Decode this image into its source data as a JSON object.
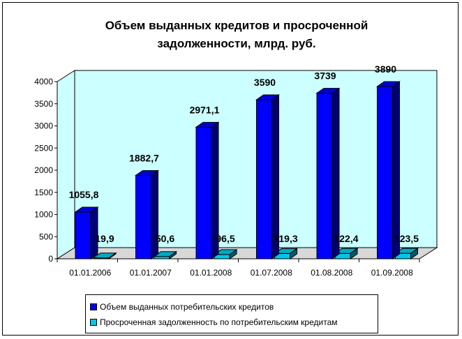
{
  "chart_data": {
    "type": "bar",
    "title": "Объем выданных кредитов и просроченной задолженности, млрд. руб.",
    "categories": [
      "01.01.2006",
      "01.01.2007",
      "01.01.2008",
      "01.07.2008",
      "01.08.2008",
      "01.09.2008"
    ],
    "series": [
      {
        "name": "Объем выданных потребительских кредитов",
        "values": [
          1055.8,
          1882.7,
          2971.1,
          3590,
          3739,
          3890
        ],
        "labels": [
          "1055,8",
          "1882,7",
          "2971,1",
          "3590",
          "3739",
          "3890"
        ],
        "color": "#0000ff"
      },
      {
        "name": "Просроченная задолженность по потребительским кредитам",
        "values": [
          19.9,
          50.6,
          96.5,
          119.3,
          122.4,
          123.5
        ],
        "labels": [
          "19,9",
          "50,6",
          "96,5",
          "119,3",
          "122,4",
          "123,5"
        ],
        "color": "#00c8e8"
      }
    ],
    "yticks": [
      0,
      500,
      1000,
      1500,
      2000,
      2500,
      3000,
      3500,
      4000
    ],
    "ylim": [
      0,
      4000
    ],
    "grid": false,
    "legend_position": "bottom",
    "wall_color": "#ccffff",
    "floor_color": "#d8d8d8"
  }
}
